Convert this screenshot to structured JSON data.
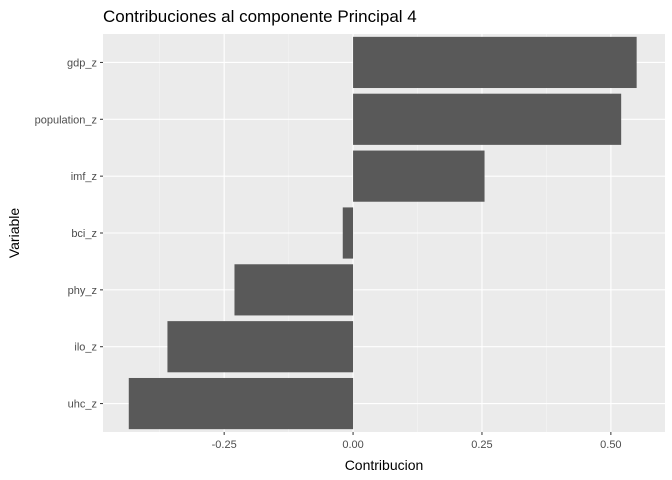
{
  "chart_data": {
    "type": "bar",
    "orientation": "horizontal",
    "title": "Contribuciones al componente Principal 4",
    "xlabel": "Contribucion",
    "ylabel": "Variable",
    "categories": [
      "gdp_z",
      "population_z",
      "imf_z",
      "bci_z",
      "phy_z",
      "ilo_z",
      "uhc_z"
    ],
    "values": [
      0.55,
      0.52,
      0.255,
      -0.02,
      -0.23,
      -0.36,
      -0.435
    ],
    "xlim": [
      -0.485,
      0.605
    ],
    "xticks": [
      -0.25,
      0.0,
      0.25,
      0.5
    ],
    "xtick_labels": [
      "-0.25",
      "0.00",
      "0.25",
      "0.50"
    ],
    "grid": true,
    "colors": {
      "bar": "#595959",
      "panel": "#ebebeb",
      "grid_major": "#ffffff",
      "grid_minor": "#f5f5f5"
    }
  }
}
